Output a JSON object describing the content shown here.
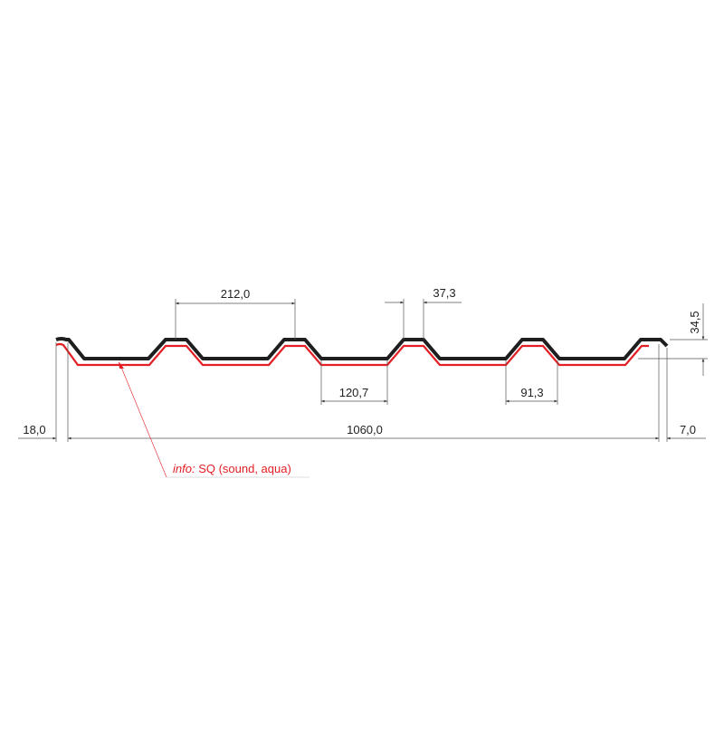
{
  "dimensions": {
    "pitch": "212,0",
    "crest_width": "37,3",
    "height": "34,5",
    "valley_width": "120,7",
    "valley_bottom": "91,3",
    "cover_width": "1060,0",
    "left_overlap": "18,0",
    "right_edge": "7,0"
  },
  "note": {
    "prefix": "info:",
    "text": " SQ (sound, aqua)"
  },
  "colors": {
    "profile": "#1e1e1e",
    "liner": "#e31e24",
    "dimension": "#555555"
  }
}
